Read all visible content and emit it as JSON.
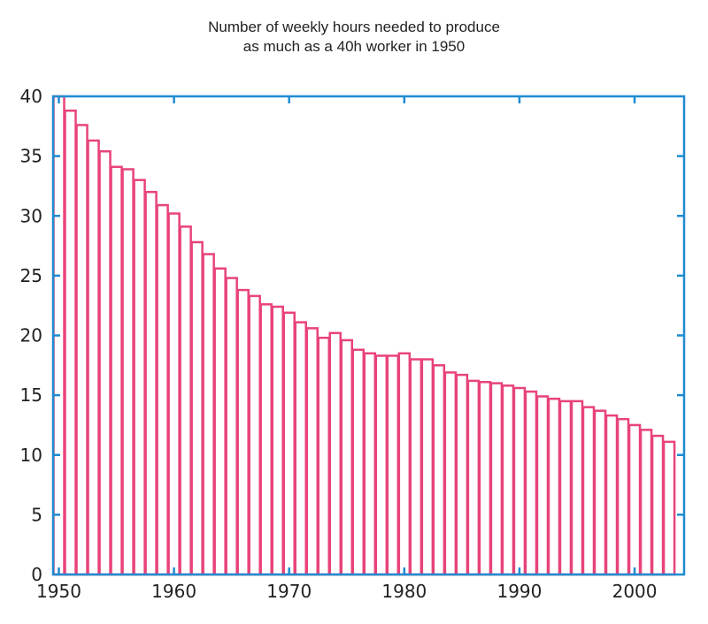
{
  "chart_data": {
    "type": "bar",
    "title": [
      "Number of weekly hours needed to produce",
      "as much as a 40h worker in 1950"
    ],
    "xlabel": "",
    "ylabel": "",
    "x": [
      1950,
      1951,
      1952,
      1953,
      1954,
      1955,
      1956,
      1957,
      1958,
      1959,
      1960,
      1961,
      1962,
      1963,
      1964,
      1965,
      1966,
      1967,
      1968,
      1969,
      1970,
      1971,
      1972,
      1973,
      1974,
      1975,
      1976,
      1977,
      1978,
      1979,
      1980,
      1981,
      1982,
      1983,
      1984,
      1985,
      1986,
      1987,
      1988,
      1989,
      1990,
      1991,
      1992,
      1993,
      1994,
      1995,
      1996,
      1997,
      1998,
      1999,
      2000,
      2001,
      2002,
      2003
    ],
    "values": [
      40.0,
      38.8,
      37.6,
      36.3,
      35.4,
      34.1,
      33.9,
      33.0,
      32.0,
      30.9,
      30.2,
      29.1,
      27.8,
      26.8,
      25.6,
      24.8,
      23.8,
      23.3,
      22.6,
      22.4,
      21.9,
      21.1,
      20.6,
      19.8,
      20.2,
      19.6,
      18.8,
      18.5,
      18.3,
      18.3,
      18.5,
      18.0,
      18.0,
      17.5,
      16.9,
      16.7,
      16.2,
      16.1,
      16.0,
      15.8,
      15.6,
      15.3,
      14.9,
      14.7,
      14.5,
      14.5,
      14.0,
      13.7,
      13.3,
      13.0,
      12.5,
      12.1,
      11.6,
      11.1
    ],
    "xlim": [
      1949.5,
      2004.3
    ],
    "ylim": [
      0,
      40
    ],
    "xticks": [
      1950,
      1960,
      1970,
      1980,
      1990,
      2000
    ],
    "yticks": [
      0,
      5,
      10,
      15,
      20,
      25,
      30,
      35,
      40
    ],
    "grid": false,
    "colors": {
      "bars": "#e8437a",
      "axes": "#1f8bd1",
      "text": "#222222"
    }
  }
}
